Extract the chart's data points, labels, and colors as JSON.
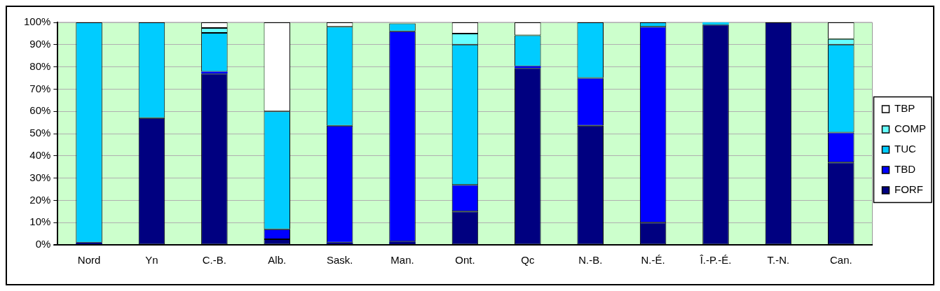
{
  "chart_data": {
    "type": "bar",
    "stacked": true,
    "categories": [
      "Nord",
      "Yn",
      "C.-B.",
      "Alb.",
      "Sask.",
      "Man.",
      "Ont.",
      "Qc",
      "N.-B.",
      "N.-É.",
      "Î.-P.-É.",
      "T.-N.",
      "Can."
    ],
    "series": [
      {
        "name": "FORF",
        "color": "#000080",
        "values": [
          1,
          57,
          77,
          2.5,
          1,
          1.5,
          15,
          79.5,
          53.5,
          10,
          99,
          100,
          37
        ]
      },
      {
        "name": "TBD",
        "color": "#0000ff",
        "values": [
          0,
          0,
          0.8,
          4.5,
          52.5,
          94.5,
          12,
          0.8,
          21.5,
          88,
          0,
          0,
          13.5
        ]
      },
      {
        "name": "TUC",
        "color": "#00ccff",
        "values": [
          99,
          43,
          17.5,
          53,
          44.5,
          3.5,
          63,
          13.9,
          25,
          2,
          1,
          0,
          39.5
        ]
      },
      {
        "name": "COMP",
        "color": "#66ffff",
        "values": [
          0,
          0,
          2.2,
          0,
          0,
          0,
          5,
          0,
          0,
          0,
          0,
          0,
          2.5
        ]
      },
      {
        "name": "TBP",
        "color": "#ffffff",
        "values": [
          0,
          0,
          2.5,
          40,
          2,
          null,
          5,
          5.8,
          0,
          0,
          0,
          0,
          7.5
        ]
      }
    ],
    "ylim": [
      0,
      100
    ],
    "yticks": [
      {
        "value": 0,
        "label": "0%"
      },
      {
        "value": 10,
        "label": "10%"
      },
      {
        "value": 20,
        "label": "20%"
      },
      {
        "value": 30,
        "label": "30%"
      },
      {
        "value": 40,
        "label": "40%"
      },
      {
        "value": 50,
        "label": "50%"
      },
      {
        "value": 60,
        "label": "60%"
      },
      {
        "value": 70,
        "label": "70%"
      },
      {
        "value": 80,
        "label": "80%"
      },
      {
        "value": 90,
        "label": "90%"
      },
      {
        "value": 100,
        "label": "100%"
      }
    ],
    "grid": "y",
    "legend": "right"
  }
}
